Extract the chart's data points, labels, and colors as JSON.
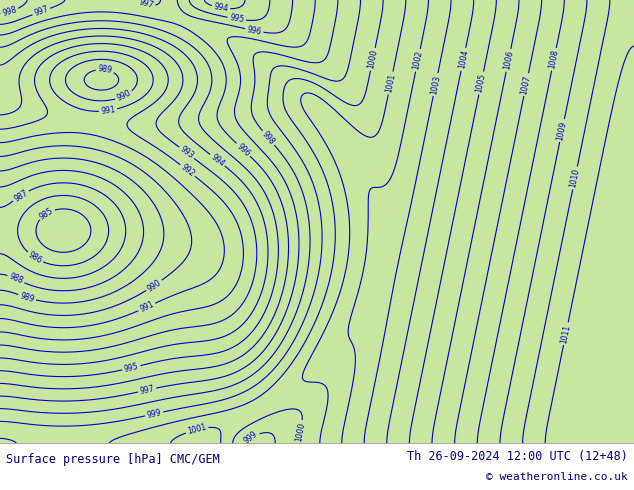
{
  "title_left": "Surface pressure [hPa] CMC/GEM",
  "title_right": "Th 26-09-2024 12:00 UTC (12+48)",
  "copyright": "© weatheronline.co.uk",
  "bg_color": "#d0d0d0",
  "land_color": "#c8e6a0",
  "sea_color": "#d8d8d8",
  "contour_color": "#0000cc",
  "label_color": "#0000cc",
  "text_color": "#000080",
  "footer_bg": "#ffffff",
  "pressure_min": 983,
  "pressure_max": 1011,
  "pressure_step": 1,
  "figsize": [
    6.34,
    4.9
  ],
  "dpi": 100
}
